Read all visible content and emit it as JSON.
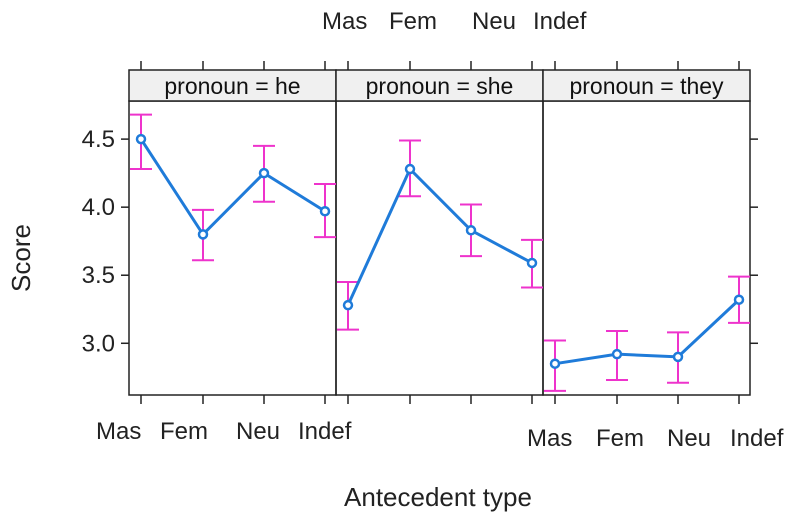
{
  "chart_data": {
    "type": "line",
    "xlabel": "Antecedent type",
    "ylabel": "Score",
    "categories": [
      "Mas",
      "Fem",
      "Neu",
      "Indef"
    ],
    "y_ticks": [
      "3.0",
      "3.5",
      "4.0",
      "4.5"
    ],
    "ylim": [
      2.62,
      4.78
    ],
    "grid": false,
    "panels": [
      {
        "strip": "pronoun = he",
        "values": [
          4.5,
          3.8,
          4.25,
          3.97
        ],
        "lower": [
          4.28,
          3.61,
          4.04,
          3.78
        ],
        "upper": [
          4.68,
          3.98,
          4.45,
          4.17
        ]
      },
      {
        "strip": "pronoun = she",
        "values": [
          3.28,
          4.28,
          3.83,
          3.59
        ],
        "lower": [
          3.1,
          4.08,
          3.64,
          3.41
        ],
        "upper": [
          3.45,
          4.49,
          4.02,
          3.76
        ]
      },
      {
        "strip": "pronoun = they",
        "values": [
          2.85,
          2.92,
          2.9,
          3.32
        ],
        "lower": [
          2.65,
          2.73,
          2.71,
          3.15
        ],
        "upper": [
          3.02,
          3.09,
          3.08,
          3.49
        ]
      }
    ],
    "colors": {
      "line": "#1f7bd9",
      "error_bar": "#ee33cc",
      "strip_bg": "#f0f0f0",
      "axis": "#222222"
    }
  }
}
